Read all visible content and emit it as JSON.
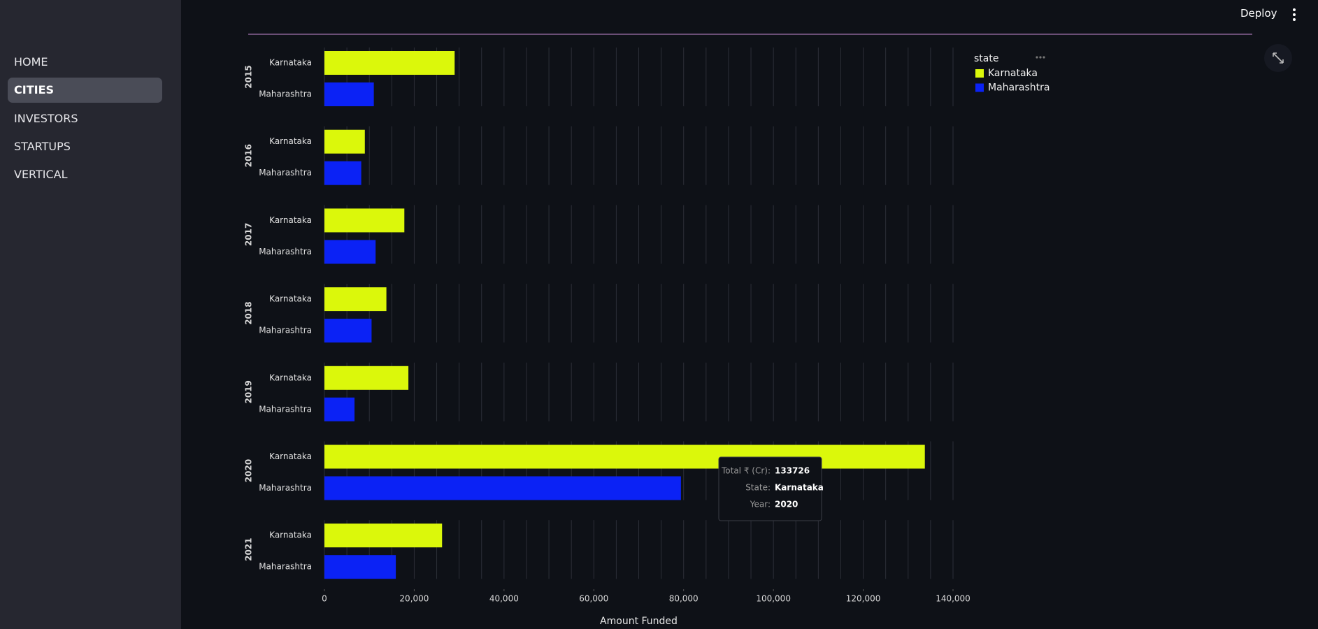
{
  "sidebar": {
    "nav": [
      "HOME",
      "CITIES",
      "INVESTORS",
      "STARTUPS",
      "VERTICAL"
    ],
    "active": 1
  },
  "header": {
    "deploy": "Deploy"
  },
  "chart_data": {
    "type": "bar",
    "orientation": "horizontal",
    "facets": [
      "2015",
      "2016",
      "2017",
      "2018",
      "2019",
      "2020",
      "2021"
    ],
    "series": [
      {
        "name": "Karnataka",
        "color": "#dbf80b",
        "values": [
          29000,
          9000,
          17800,
          13800,
          18700,
          133726,
          26200
        ]
      },
      {
        "name": "Maharashtra",
        "color": "#0b22f5",
        "values": [
          11000,
          8200,
          11400,
          10500,
          6700,
          79400,
          15900
        ]
      }
    ],
    "legend_title": "state",
    "xlabel": "Amount Funded",
    "xlim": [
      0,
      140000
    ],
    "xticks": [
      0,
      {
        "value": 20000,
        "label": "20,000"
      },
      {
        "value": 40000,
        "label": "40,000"
      },
      {
        "value": 60000,
        "label": "60,000"
      },
      {
        "value": 80000,
        "label": "80,000"
      },
      {
        "value": 100000,
        "label": "100,000"
      },
      {
        "value": 120000,
        "label": "120,000"
      },
      {
        "value": 140000,
        "label": "140,000"
      }
    ],
    "xgrid": [
      0,
      5000,
      10000,
      15000,
      20000,
      25000,
      30000,
      35000,
      40000,
      45000,
      50000,
      55000,
      60000,
      65000,
      70000,
      75000,
      80000,
      85000,
      90000,
      95000,
      100000,
      105000,
      110000,
      115000,
      120000,
      125000,
      130000,
      135000,
      140000
    ],
    "grid": true,
    "tooltip": {
      "rows": [
        {
          "label": "Total ₹ (Cr):",
          "value": 133726
        },
        {
          "label": "State:",
          "value": "Karnataka"
        },
        {
          "label": "Year:",
          "value": "2020"
        }
      ]
    }
  }
}
